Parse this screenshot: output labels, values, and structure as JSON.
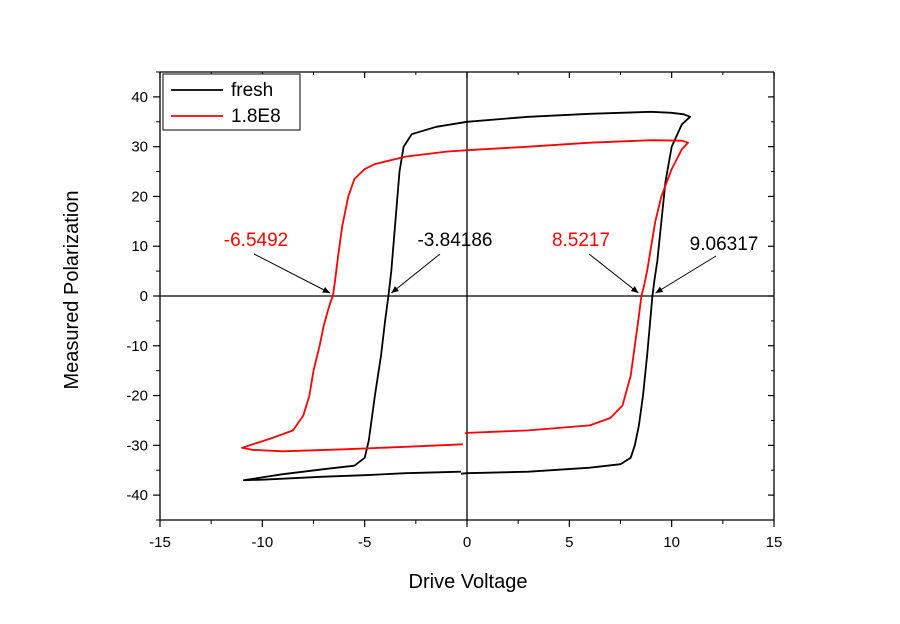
{
  "chart_data": {
    "type": "line",
    "title": "",
    "xlabel": "Drive Voltage",
    "ylabel": "Measured Polarization",
    "xlim": [
      -15,
      15
    ],
    "ylim": [
      -45,
      45
    ],
    "xticks": [
      -15,
      -10,
      -5,
      0,
      5,
      10,
      15
    ],
    "yticks": [
      -40,
      -30,
      -20,
      -10,
      0,
      10,
      20,
      30,
      40
    ],
    "xtick_labels": [
      "-15",
      "-10",
      "-5",
      "0",
      "5",
      "10",
      "15"
    ],
    "ytick_labels": [
      "-40",
      "-30",
      "-20",
      "-10",
      "0",
      "10",
      "20",
      "30",
      "40"
    ],
    "grid": false,
    "legend_position": "top-left",
    "series": [
      {
        "name": "fresh",
        "color": "#000000",
        "x": [
          -0.3,
          -3,
          -5,
          -7,
          -9,
          -10,
          -10.9,
          -9,
          -7,
          -5.5,
          -5,
          -4.8,
          -4.5,
          -4.2,
          -4.0,
          -3.84,
          -3.7,
          -3.5,
          -3.3,
          -3.1,
          -2.7,
          -1.5,
          0,
          3,
          6,
          9,
          10,
          10.6,
          10.9,
          10.5,
          10.0,
          9.7,
          9.5,
          9.3,
          9.15,
          9.06,
          8.95,
          8.8,
          8.6,
          8.4,
          8.2,
          8.0,
          7.5,
          6,
          3,
          0,
          -0.3
        ],
        "y": [
          -35.3,
          -35.6,
          -36.0,
          -36.3,
          -36.7,
          -36.9,
          -37.0,
          -35.8,
          -34.8,
          -34.1,
          -32.5,
          -29.0,
          -20.0,
          -12.0,
          -5.0,
          0.0,
          5.0,
          15.0,
          25.0,
          30.0,
          32.5,
          34.0,
          35.0,
          36.0,
          36.6,
          37.0,
          36.8,
          36.5,
          36.0,
          34.5,
          30.0,
          23.0,
          15.0,
          7.0,
          3.0,
          0.0,
          -5.0,
          -12.0,
          -20.0,
          -26.0,
          -30.0,
          -32.5,
          -33.8,
          -34.5,
          -35.3,
          -35.6,
          -35.7
        ]
      },
      {
        "name": "1.8E8",
        "color": "#ff0000",
        "x": [
          -0.2,
          -3,
          -6,
          -9,
          -10.5,
          -11,
          -9.5,
          -8.5,
          -8.0,
          -7.7,
          -7.5,
          -7.2,
          -7.0,
          -6.8,
          -6.65,
          -6.55,
          -6.45,
          -6.3,
          -6.1,
          -5.8,
          -5.5,
          -5.0,
          -4.5,
          -3,
          -1,
          0,
          3,
          6,
          9,
          10.5,
          10.8,
          10.5,
          10,
          9.5,
          9.2,
          9.0,
          8.8,
          8.65,
          8.52,
          8.4,
          8.2,
          8.0,
          7.6,
          7.0,
          6.0,
          3.0,
          0.0,
          -0.1
        ],
        "y": [
          -29.8,
          -30.3,
          -30.8,
          -31.2,
          -30.9,
          -30.5,
          -28.5,
          -27.0,
          -24.0,
          -20.0,
          -15.0,
          -10.0,
          -6.0,
          -3.0,
          -1.0,
          0.0,
          3.0,
          8.0,
          14.0,
          20.0,
          23.5,
          25.5,
          26.5,
          28.0,
          29.0,
          29.3,
          30.0,
          30.8,
          31.3,
          31.2,
          30.8,
          29.5,
          25.5,
          20.0,
          15.0,
          10.0,
          5.0,
          2.0,
          0.0,
          -4.0,
          -10.0,
          -16.0,
          -22.0,
          -24.5,
          -26.0,
          -27.0,
          -27.5,
          -27.6
        ]
      }
    ],
    "annotations": [
      {
        "text": "-6.5492",
        "color": "#ff0000",
        "target": [
          -6.5492,
          0
        ]
      },
      {
        "text": "-3.84186",
        "color": "#000000",
        "target": [
          -3.84186,
          0
        ]
      },
      {
        "text": "8.5217",
        "color": "#ff0000",
        "target": [
          8.5217,
          0
        ]
      },
      {
        "text": "9.06317",
        "color": "#000000",
        "target": [
          9.06317,
          0
        ]
      }
    ]
  }
}
